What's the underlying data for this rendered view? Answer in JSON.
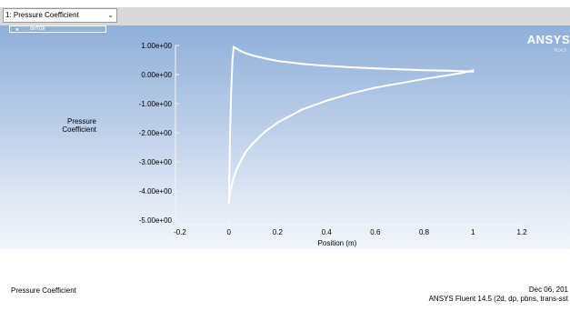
{
  "window_selector": {
    "value": "1: Pressure Coefficient"
  },
  "legend": {
    "entries": [
      "airfoil"
    ]
  },
  "brand": {
    "name": "ANSYS",
    "sub": "R14.5"
  },
  "footer": {
    "title": "Pressure Coefficient",
    "date": "Dec 06, 201",
    "version": "ANSYS Fluent 14.5 (2d, dp, pbns, trans-sst"
  },
  "colors": {
    "plot_top": "#8fb0d8",
    "plot_bottom": "#f2f5fb",
    "curve": "#ffffff"
  },
  "chart_data": {
    "type": "scatter",
    "title": "",
    "xlabel": "Position (m)",
    "ylabel_lines": [
      "Pressure",
      "Coefficient"
    ],
    "xlim": [
      -0.2,
      1.2
    ],
    "ylim": [
      -5,
      1
    ],
    "x_ticks": [
      -0.2,
      0,
      0.2,
      0.4,
      0.6,
      0.8,
      1,
      1.2
    ],
    "x_tick_labels": [
      "-0.2",
      "0",
      "0.2",
      "0.4",
      "0.6",
      "0.8",
      "1",
      "1.2"
    ],
    "y_ticks": [
      1,
      0,
      -1,
      -2,
      -3,
      -4,
      -5
    ],
    "y_tick_labels": [
      "1.00e+00",
      "0.00e+00",
      "-1.00e+00",
      "-2.00e+00",
      "-3.00e+00",
      "-4.00e+00",
      "-5.00e+00"
    ],
    "grid": false,
    "legend_position": "top-left",
    "series": [
      {
        "name": "airfoil",
        "surface": "upper",
        "x": [
          0.0,
          0.002,
          0.005,
          0.01,
          0.015,
          0.02,
          0.03,
          0.04,
          0.05,
          0.07,
          0.1,
          0.15,
          0.2,
          0.3,
          0.4,
          0.5,
          0.6,
          0.7,
          0.8,
          0.9,
          0.95,
          0.98,
          1.0
        ],
        "y": [
          -4.4,
          -3.5,
          -2.0,
          -0.5,
          0.5,
          0.95,
          0.9,
          0.85,
          0.8,
          0.73,
          0.65,
          0.55,
          0.47,
          0.37,
          0.3,
          0.25,
          0.21,
          0.18,
          0.15,
          0.13,
          0.12,
          0.11,
          0.1
        ]
      },
      {
        "name": "airfoil",
        "surface": "lower",
        "x": [
          0.0,
          0.003,
          0.01,
          0.02,
          0.03,
          0.05,
          0.07,
          0.1,
          0.15,
          0.2,
          0.3,
          0.4,
          0.5,
          0.6,
          0.7,
          0.8,
          0.9,
          0.95,
          0.98,
          1.0
        ],
        "y": [
          -4.4,
          -4.2,
          -3.85,
          -3.55,
          -3.3,
          -2.95,
          -2.65,
          -2.35,
          -1.95,
          -1.65,
          -1.2,
          -0.9,
          -0.65,
          -0.45,
          -0.3,
          -0.15,
          -0.02,
          0.05,
          0.1,
          0.15
        ]
      }
    ]
  }
}
